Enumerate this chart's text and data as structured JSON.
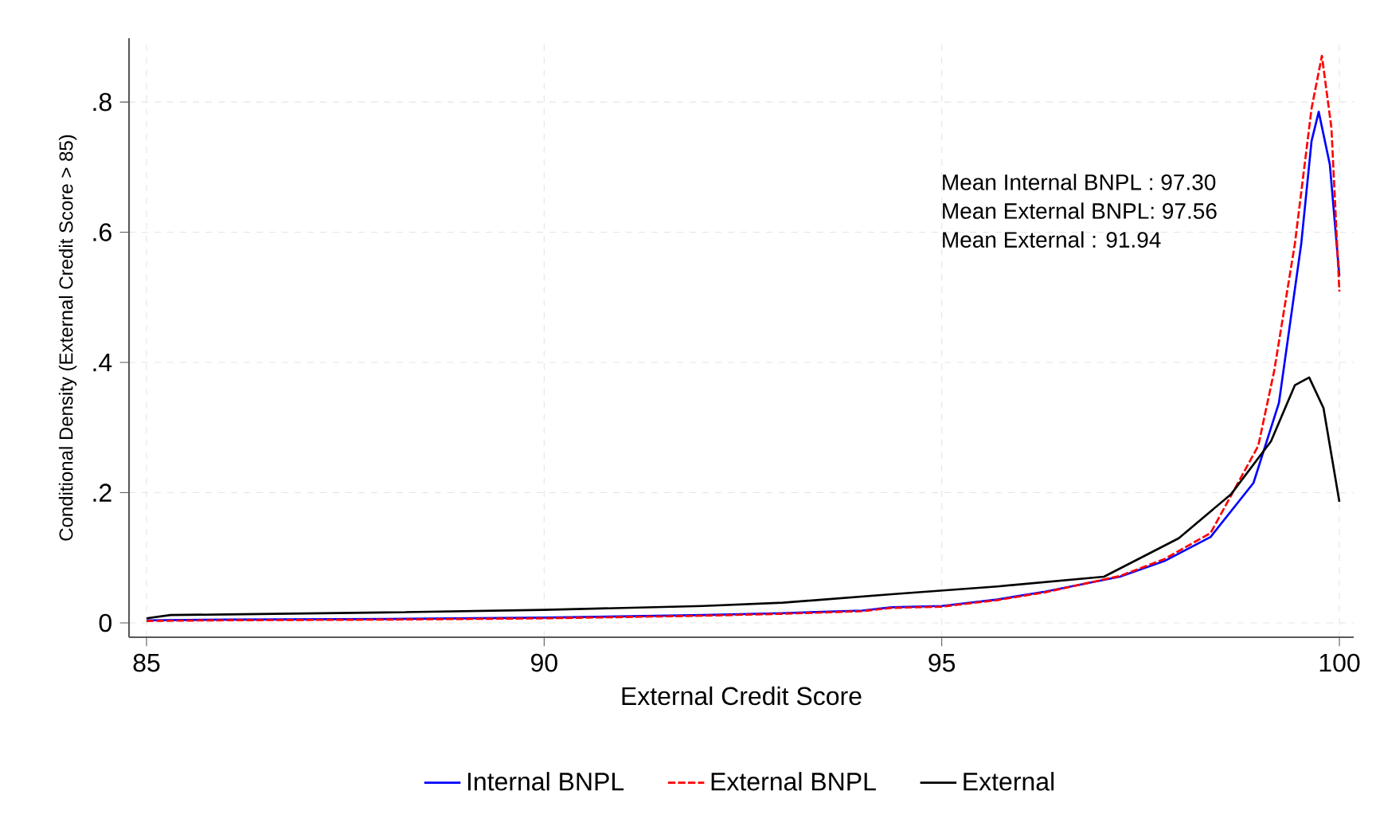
{
  "chart_data": {
    "type": "line",
    "xlabel": "External Credit Score",
    "ylabel": "Conditional Density (External Credit Score > 85)",
    "xlim": [
      84.78,
      100.18
    ],
    "ylim": [
      -0.022,
      0.898
    ],
    "xticks": [
      85,
      90,
      95,
      100
    ],
    "yticks": [
      0,
      {
        "value": 0.2,
        "label": ".2"
      },
      {
        "value": 0.4,
        "label": ".4"
      },
      {
        "value": 0.6,
        "label": ".6"
      },
      {
        "value": 0.8,
        "label": ".8"
      }
    ],
    "grid": true,
    "legend": "bottom",
    "annotations": [
      "Mean Internal BNPL : 97.30",
      "Mean External BNPL: 97.56",
      "Mean External        : 91.94"
    ],
    "series": [
      {
        "name": "Internal BNPL",
        "color": "#0000ff",
        "line_style": "solid",
        "x": [
          85,
          86,
          88,
          90,
          92,
          93,
          94,
          94.37,
          95,
          95.7,
          96.3,
          97.24,
          97.8,
          98.38,
          98.92,
          99.24,
          99.52,
          99.65,
          99.74,
          99.88,
          100
        ],
        "values": [
          0.004,
          0.005,
          0.006,
          0.008,
          0.012,
          0.015,
          0.019,
          0.024,
          0.026,
          0.036,
          0.048,
          0.071,
          0.095,
          0.132,
          0.215,
          0.338,
          0.582,
          0.74,
          0.785,
          0.704,
          0.533
        ]
      },
      {
        "name": "External BNPL",
        "color": "#ff0000",
        "line_style": "dashed",
        "x": [
          85,
          86,
          88,
          90,
          92,
          93,
          94,
          94.37,
          95,
          95.7,
          96.3,
          97.24,
          97.8,
          98.38,
          98.98,
          99.18,
          99.44,
          99.65,
          99.78,
          99.9,
          100
        ],
        "values": [
          0.003,
          0.004,
          0.005,
          0.007,
          0.011,
          0.014,
          0.018,
          0.023,
          0.025,
          0.035,
          0.047,
          0.072,
          0.098,
          0.138,
          0.272,
          0.387,
          0.582,
          0.79,
          0.871,
          0.76,
          0.509
        ]
      },
      {
        "name": "External",
        "color": "#000000",
        "line_style": "solid",
        "x": [
          85,
          85.3,
          86,
          88,
          90,
          92,
          93,
          94.37,
          95.7,
          97.04,
          97.98,
          98.64,
          99.14,
          99.44,
          99.62,
          99.8,
          100
        ],
        "values": [
          0.007,
          0.012,
          0.013,
          0.016,
          0.02,
          0.026,
          0.031,
          0.044,
          0.056,
          0.071,
          0.13,
          0.198,
          0.279,
          0.365,
          0.377,
          0.33,
          0.186
        ]
      }
    ]
  }
}
